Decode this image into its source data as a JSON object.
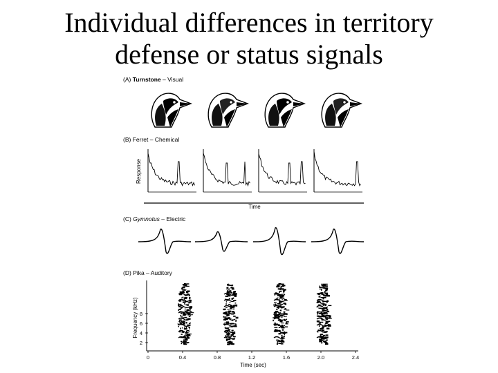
{
  "slide": {
    "title_line1": "Individual differences in territory",
    "title_line2": "defense or status signals"
  },
  "figure": {
    "panels": [
      {
        "letter": "(A)",
        "species": "Turnstone",
        "modality": "Visual",
        "italic_species": false
      },
      {
        "letter": "(B)",
        "species": "Ferret",
        "modality": "Chemical",
        "italic_species": false
      },
      {
        "letter": "(C)",
        "species": "Gymnotus",
        "modality": "Electric",
        "italic_species": true
      },
      {
        "letter": "(D)",
        "species": "Pika",
        "modality": "Auditory",
        "italic_species": false
      }
    ],
    "separator": " – ",
    "ferret_axes": {
      "ylabel": "Response",
      "xlabel": "Time"
    },
    "pika_axes": {
      "ylabel": "Frequency (kHz)",
      "xlabel": "Time (sec)",
      "yticks": [
        "2",
        "4",
        "6",
        "8"
      ],
      "xticks": [
        "0",
        "0.4",
        "0.8",
        "1.2",
        "1.6",
        "2.0",
        "2.4"
      ]
    }
  }
}
